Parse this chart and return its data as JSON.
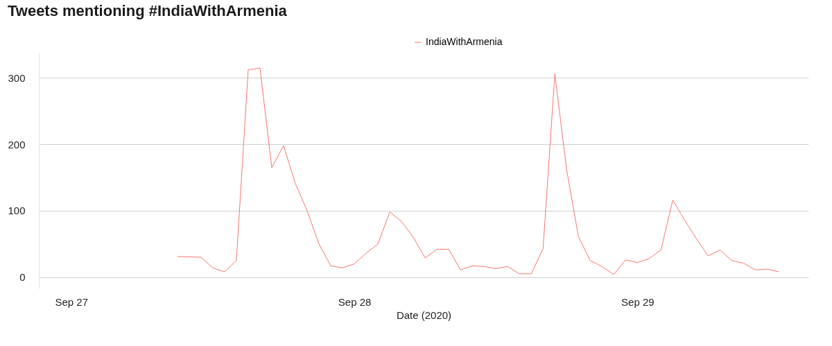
{
  "chart_data": {
    "type": "line",
    "title": "Tweets mentioning #IndiaWithArmenia",
    "xlabel": "Date (2020)",
    "x": [
      "2020-09-27T09:00",
      "2020-09-27T11:00",
      "2020-09-27T12:00",
      "2020-09-27T13:00",
      "2020-09-27T14:00",
      "2020-09-27T15:00",
      "2020-09-27T16:00",
      "2020-09-27T17:00",
      "2020-09-27T18:00",
      "2020-09-27T19:00",
      "2020-09-27T20:00",
      "2020-09-27T21:00",
      "2020-09-27T22:00",
      "2020-09-27T23:00",
      "2020-09-28T00:00",
      "2020-09-28T01:00",
      "2020-09-28T02:00",
      "2020-09-28T03:00",
      "2020-09-28T04:00",
      "2020-09-28T05:00",
      "2020-09-28T06:00",
      "2020-09-28T07:00",
      "2020-09-28T08:00",
      "2020-09-28T09:00",
      "2020-09-28T10:00",
      "2020-09-28T11:00",
      "2020-09-28T12:00",
      "2020-09-28T13:00",
      "2020-09-28T14:00",
      "2020-09-28T15:00",
      "2020-09-28T16:00",
      "2020-09-28T17:00",
      "2020-09-28T18:00",
      "2020-09-28T19:00",
      "2020-09-28T20:00",
      "2020-09-28T21:00",
      "2020-09-28T22:00",
      "2020-09-28T23:00",
      "2020-09-29T00:00",
      "2020-09-29T01:00",
      "2020-09-29T02:00",
      "2020-09-29T03:00",
      "2020-09-29T04:00",
      "2020-09-29T05:00",
      "2020-09-29T06:00",
      "2020-09-29T07:00",
      "2020-09-29T08:00",
      "2020-09-29T09:00",
      "2020-09-29T10:00",
      "2020-09-29T11:00",
      "2020-09-29T12:00"
    ],
    "series": [
      {
        "name": "IndiaWithArmenia",
        "color": "#f8766d",
        "values": [
          31,
          30,
          14,
          8,
          25,
          312,
          315,
          165,
          198,
          141,
          100,
          50,
          17,
          14,
          20,
          36,
          50,
          98,
          84,
          60,
          29,
          42,
          42,
          11,
          17,
          16,
          13,
          16,
          5,
          5,
          43,
          306,
          162,
          61,
          25,
          16,
          4,
          26,
          22,
          28,
          41,
          116,
          86,
          58,
          32,
          41,
          25,
          21,
          11,
          12,
          8
        ]
      }
    ],
    "xlim": [
      "2020-09-26T21:15",
      "2020-09-29T14:30"
    ],
    "xticks": [
      {
        "value": "2020-09-27",
        "label": "Sep 27"
      },
      {
        "value": "2020-09-28",
        "label": "Sep 28"
      },
      {
        "value": "2020-09-29",
        "label": "Sep 29"
      }
    ],
    "ylim": [
      -17,
      338
    ],
    "yticks": [
      0,
      100,
      200,
      300
    ],
    "grid": "y",
    "legend": "top",
    "marker": "none",
    "line_style": "solid"
  }
}
